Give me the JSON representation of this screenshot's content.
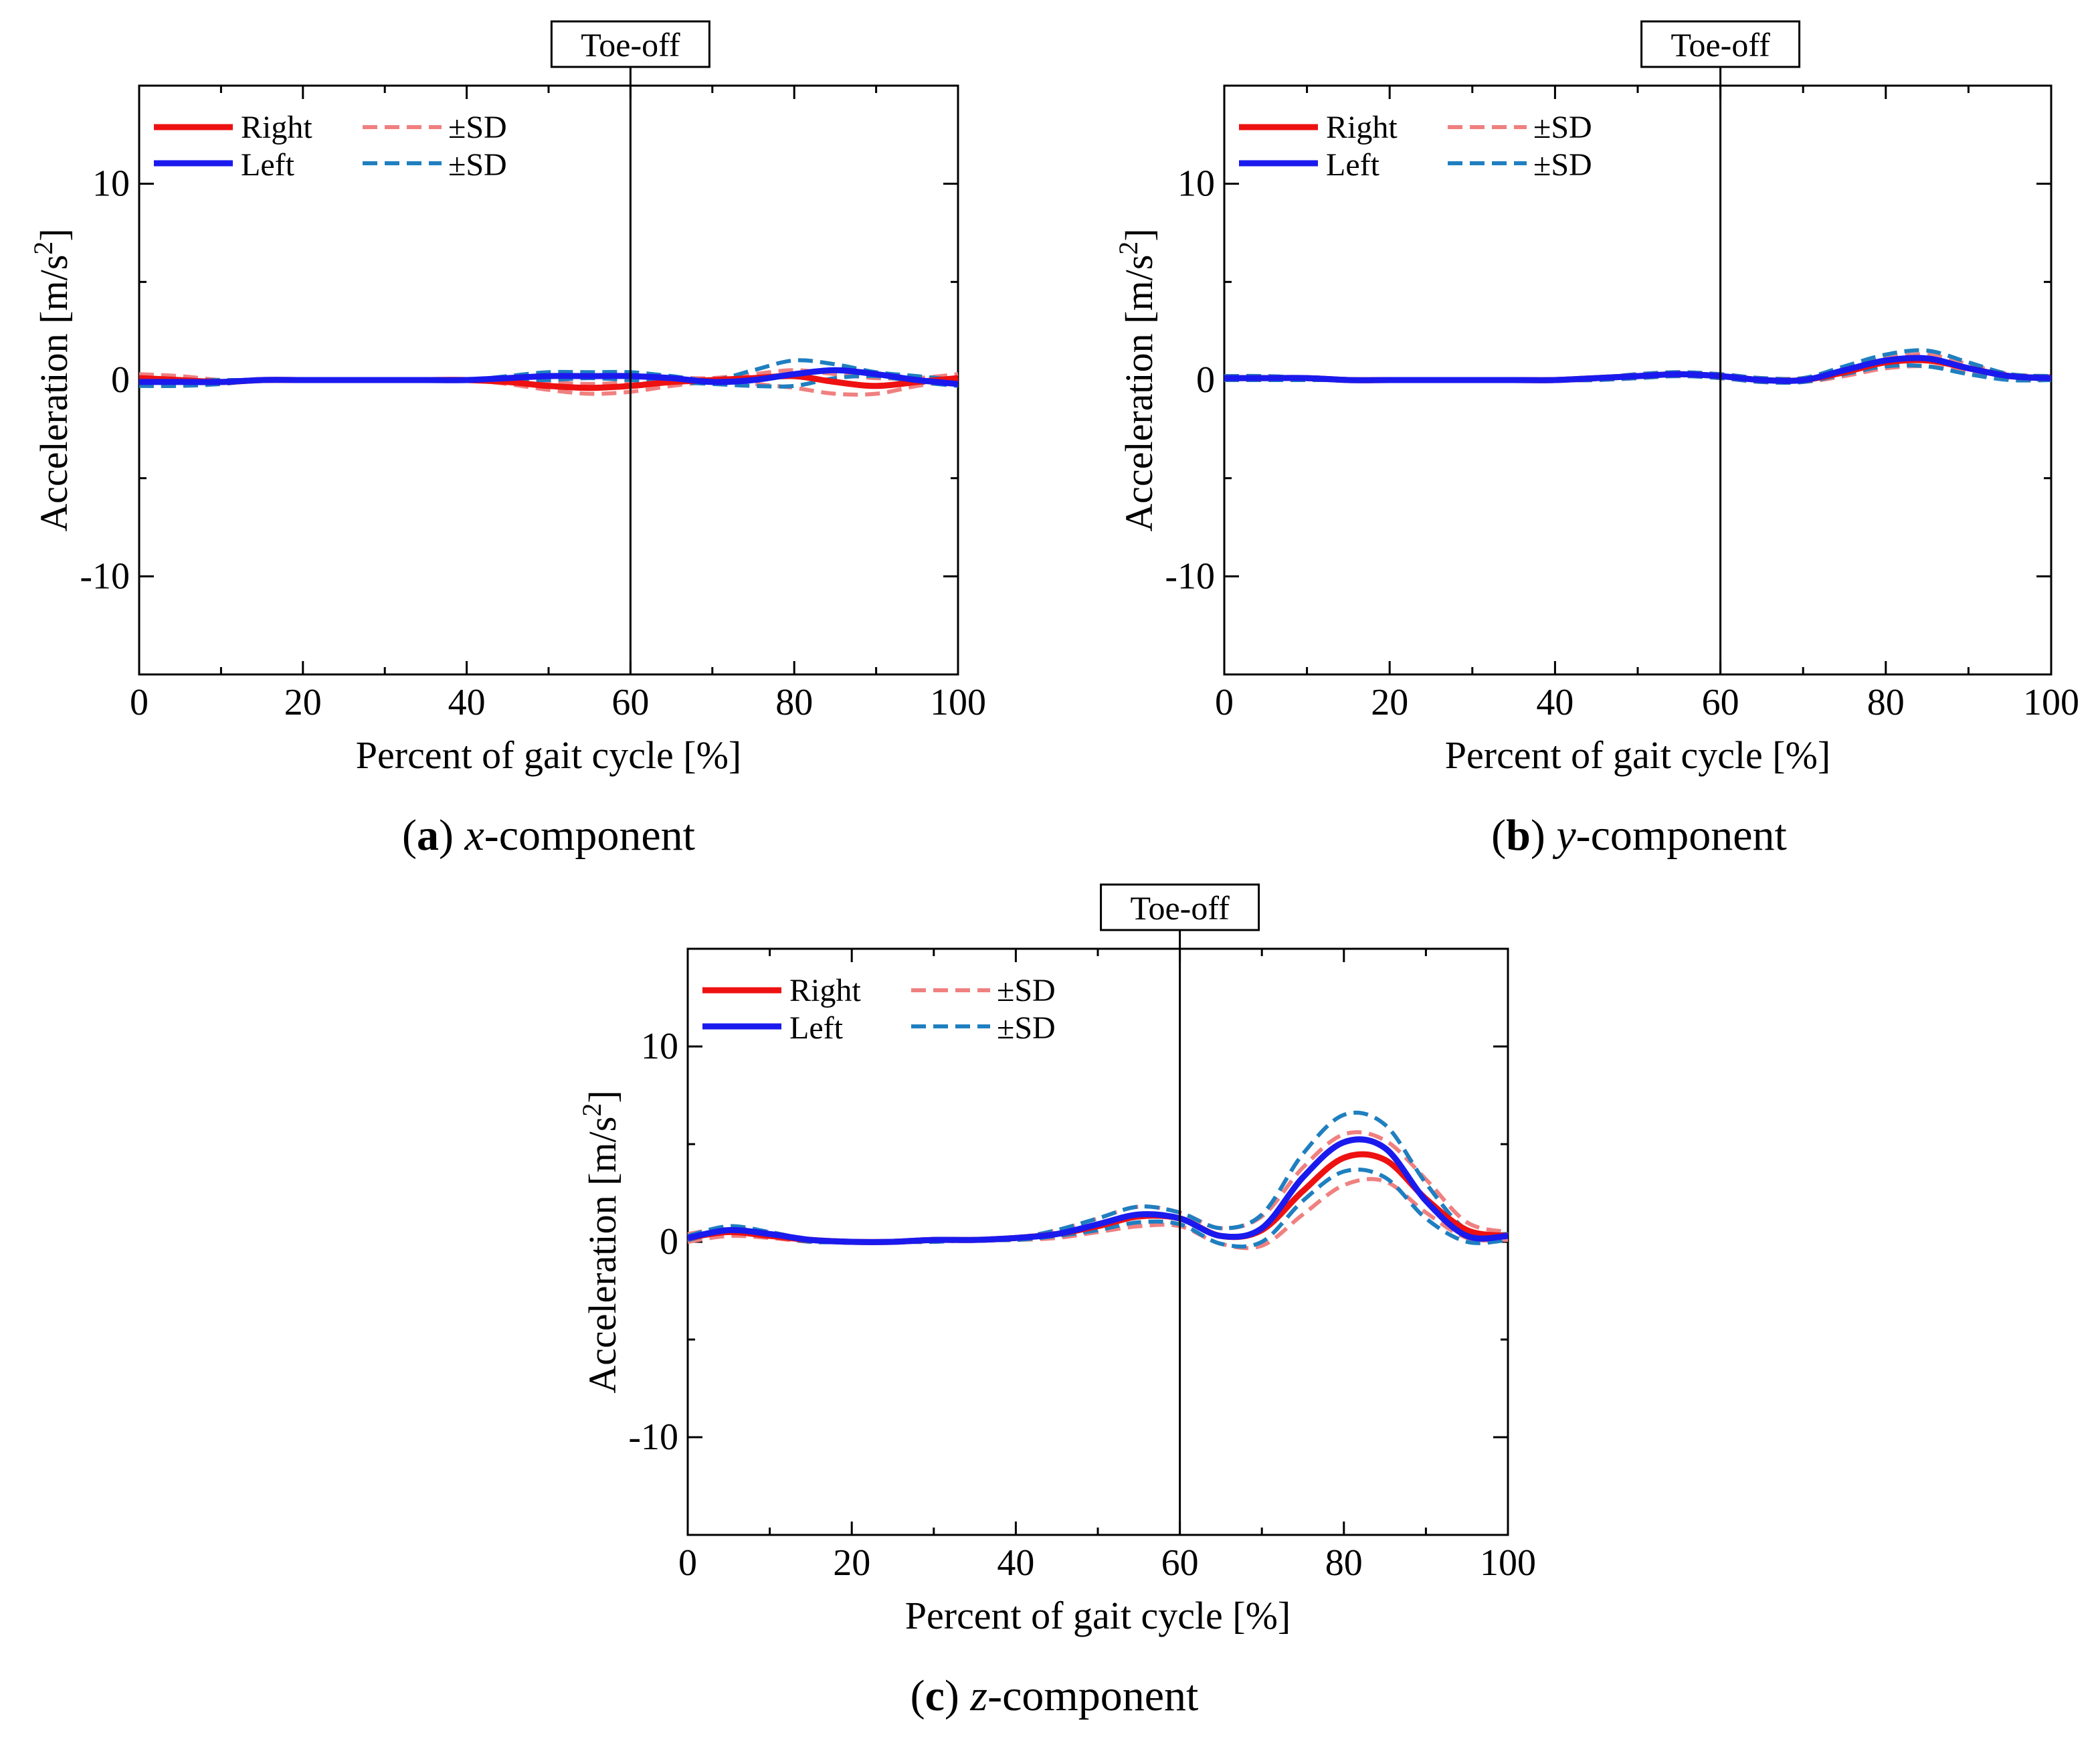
{
  "chart_data": [
    {
      "type": "line",
      "panel_letter": "a",
      "caption_var": "x",
      "caption_rest": "-component",
      "xlabel": "Percent of gait cycle [%]",
      "ylabel": "Acceleration [m/s",
      "ylabel_sup": "2",
      "ylabel_end": "]",
      "xlim": [
        0,
        100
      ],
      "ylim": [
        -15,
        15
      ],
      "xticks": [
        0,
        20,
        40,
        60,
        80,
        100
      ],
      "yticks": [
        -10,
        0,
        10
      ],
      "ytick_labels": [
        "-10",
        "0",
        "10"
      ],
      "annotation": {
        "label": "Toe-off",
        "x": 60
      },
      "legend": {
        "position": "top-left",
        "entries": [
          "Right",
          "Left",
          "±SD",
          "±SD"
        ]
      },
      "x": [
        0,
        5,
        10,
        15,
        20,
        25,
        30,
        35,
        40,
        45,
        50,
        55,
        60,
        65,
        70,
        75,
        80,
        85,
        90,
        95,
        100
      ],
      "series": [
        {
          "name": "Right",
          "color": "#ee1111",
          "dash": false,
          "width": 9,
          "values": [
            0.1,
            0.0,
            -0.1,
            0.0,
            0.0,
            0.0,
            0.0,
            0.0,
            0.0,
            -0.1,
            -0.3,
            -0.4,
            -0.3,
            -0.1,
            0.0,
            0.1,
            0.2,
            -0.1,
            -0.3,
            -0.1,
            0.1
          ]
        },
        {
          "name": "Left",
          "color": "#1a1aee",
          "dash": false,
          "width": 9,
          "values": [
            -0.1,
            -0.1,
            -0.1,
            0.0,
            0.0,
            0.0,
            0.0,
            0.0,
            0.0,
            0.1,
            0.2,
            0.2,
            0.2,
            0.1,
            -0.1,
            0.0,
            0.3,
            0.5,
            0.3,
            0.0,
            -0.2
          ]
        },
        {
          "name": "Right +SD",
          "color": "#f08080",
          "dash": true,
          "width": 6,
          "values": [
            0.3,
            0.2,
            0.0,
            0.0,
            0.0,
            0.0,
            0.0,
            0.0,
            0.0,
            0.0,
            -0.1,
            -0.2,
            -0.1,
            0.1,
            0.1,
            0.3,
            0.5,
            0.3,
            0.1,
            0.1,
            0.3
          ]
        },
        {
          "name": "Right -SD",
          "color": "#f08080",
          "dash": true,
          "width": 6,
          "values": [
            -0.1,
            -0.2,
            -0.2,
            0.0,
            0.0,
            0.0,
            0.0,
            0.0,
            0.0,
            -0.2,
            -0.5,
            -0.7,
            -0.6,
            -0.3,
            -0.1,
            -0.2,
            -0.4,
            -0.7,
            -0.7,
            -0.3,
            0.0
          ]
        },
        {
          "name": "Left +SD",
          "color": "#1f7fc0",
          "dash": true,
          "width": 6,
          "values": [
            0.1,
            0.0,
            0.0,
            0.0,
            0.0,
            0.0,
            0.0,
            0.0,
            0.0,
            0.2,
            0.4,
            0.4,
            0.4,
            0.2,
            0.0,
            0.5,
            1.0,
            0.8,
            0.4,
            0.2,
            0.0
          ]
        },
        {
          "name": "Left -SD",
          "color": "#1f7fc0",
          "dash": true,
          "width": 6,
          "values": [
            -0.3,
            -0.3,
            -0.2,
            0.0,
            0.0,
            0.0,
            0.0,
            0.0,
            0.0,
            0.0,
            0.0,
            0.1,
            0.0,
            -0.1,
            -0.2,
            -0.3,
            -0.3,
            0.1,
            0.2,
            -0.1,
            -0.3
          ]
        }
      ]
    },
    {
      "type": "line",
      "panel_letter": "b",
      "caption_var": "y",
      "caption_rest": "-component",
      "xlabel": "Percent of gait cycle [%]",
      "ylabel": "Acceleration [m/s",
      "ylabel_sup": "2",
      "ylabel_end": "]",
      "xlim": [
        0,
        100
      ],
      "ylim": [
        -15,
        15
      ],
      "xticks": [
        0,
        20,
        40,
        60,
        80,
        100
      ],
      "yticks": [
        -10,
        0,
        10
      ],
      "ytick_labels": [
        "-10",
        "0",
        "10"
      ],
      "annotation": {
        "label": "Toe-off",
        "x": 60
      },
      "legend": {
        "position": "top-left",
        "entries": [
          "Right",
          "Left",
          "±SD",
          "±SD"
        ]
      },
      "x": [
        0,
        5,
        10,
        15,
        20,
        25,
        30,
        35,
        40,
        45,
        50,
        55,
        60,
        65,
        70,
        75,
        80,
        85,
        90,
        95,
        100
      ],
      "series": [
        {
          "name": "Right",
          "color": "#ee1111",
          "dash": false,
          "width": 9,
          "values": [
            0.1,
            0.1,
            0.1,
            0.0,
            0.0,
            0.0,
            0.0,
            0.0,
            0.0,
            0.1,
            0.2,
            0.3,
            0.2,
            0.0,
            0.0,
            0.4,
            0.9,
            1.0,
            0.6,
            0.2,
            0.1
          ]
        },
        {
          "name": "Left",
          "color": "#1a1aee",
          "dash": false,
          "width": 9,
          "values": [
            0.1,
            0.1,
            0.1,
            0.0,
            0.0,
            0.0,
            0.0,
            0.0,
            0.0,
            0.1,
            0.2,
            0.3,
            0.2,
            0.0,
            0.0,
            0.5,
            1.0,
            1.1,
            0.6,
            0.2,
            0.1
          ]
        },
        {
          "name": "Right +SD",
          "color": "#f08080",
          "dash": true,
          "width": 6,
          "values": [
            0.2,
            0.2,
            0.1,
            0.0,
            0.0,
            0.0,
            0.0,
            0.0,
            0.0,
            0.1,
            0.3,
            0.4,
            0.3,
            0.1,
            0.1,
            0.6,
            1.1,
            1.3,
            0.8,
            0.3,
            0.2
          ]
        },
        {
          "name": "Right -SD",
          "color": "#f08080",
          "dash": true,
          "width": 6,
          "values": [
            0.0,
            0.0,
            0.0,
            0.0,
            0.0,
            0.0,
            0.0,
            0.0,
            0.0,
            0.0,
            0.1,
            0.2,
            0.1,
            -0.1,
            -0.1,
            0.2,
            0.6,
            0.7,
            0.4,
            0.1,
            0.0
          ]
        },
        {
          "name": "Left +SD",
          "color": "#1f7fc0",
          "dash": true,
          "width": 6,
          "values": [
            0.2,
            0.2,
            0.1,
            0.0,
            0.0,
            0.0,
            0.0,
            0.0,
            0.0,
            0.1,
            0.3,
            0.4,
            0.3,
            0.1,
            0.1,
            0.7,
            1.3,
            1.5,
            0.9,
            0.3,
            0.2
          ]
        },
        {
          "name": "Left -SD",
          "color": "#1f7fc0",
          "dash": true,
          "width": 6,
          "values": [
            0.0,
            0.0,
            0.0,
            0.0,
            0.0,
            0.0,
            0.0,
            0.0,
            0.0,
            0.0,
            0.1,
            0.2,
            0.1,
            -0.1,
            -0.1,
            0.3,
            0.7,
            0.7,
            0.3,
            0.0,
            0.0
          ]
        }
      ]
    },
    {
      "type": "line",
      "panel_letter": "c",
      "caption_var": "z",
      "caption_rest": "-component",
      "xlabel": "Percent of gait cycle [%]",
      "ylabel": "Acceleration [m/s",
      "ylabel_sup": "2",
      "ylabel_end": "]",
      "xlim": [
        0,
        100
      ],
      "ylim": [
        -15,
        15
      ],
      "xticks": [
        0,
        20,
        40,
        60,
        80,
        100
      ],
      "yticks": [
        -10,
        0,
        10
      ],
      "ytick_labels": [
        "-10",
        "0",
        "10"
      ],
      "annotation": {
        "label": "Toe-off",
        "x": 60
      },
      "legend": {
        "position": "top-left",
        "entries": [
          "Right",
          "Left",
          "±SD",
          "±SD"
        ]
      },
      "x": [
        0,
        5,
        10,
        15,
        20,
        25,
        30,
        35,
        40,
        45,
        50,
        55,
        60,
        65,
        70,
        75,
        80,
        85,
        90,
        95,
        100
      ],
      "series": [
        {
          "name": "Right",
          "color": "#ee1111",
          "dash": false,
          "width": 9,
          "values": [
            0.2,
            0.5,
            0.3,
            0.1,
            0.0,
            0.0,
            0.1,
            0.1,
            0.2,
            0.4,
            0.8,
            1.3,
            1.2,
            0.3,
            0.6,
            2.6,
            4.3,
            4.2,
            2.2,
            0.6,
            0.3
          ]
        },
        {
          "name": "Left",
          "color": "#1a1aee",
          "dash": false,
          "width": 9,
          "values": [
            0.2,
            0.6,
            0.4,
            0.1,
            0.0,
            0.0,
            0.1,
            0.1,
            0.2,
            0.4,
            0.9,
            1.4,
            1.2,
            0.3,
            0.7,
            3.3,
            5.1,
            4.8,
            2.1,
            0.3,
            0.3
          ]
        },
        {
          "name": "Right +SD",
          "color": "#f08080",
          "dash": true,
          "width": 6,
          "values": [
            0.4,
            0.7,
            0.5,
            0.1,
            0.0,
            0.0,
            0.1,
            0.1,
            0.2,
            0.6,
            1.2,
            1.8,
            1.5,
            0.7,
            1.3,
            3.8,
            5.5,
            5.2,
            3.2,
            1.0,
            0.5
          ]
        },
        {
          "name": "Right -SD",
          "color": "#f08080",
          "dash": true,
          "width": 6,
          "values": [
            0.0,
            0.3,
            0.2,
            0.0,
            0.0,
            0.0,
            0.0,
            0.1,
            0.1,
            0.2,
            0.5,
            0.8,
            0.8,
            -0.1,
            -0.2,
            1.4,
            2.9,
            3.1,
            1.5,
            0.2,
            0.1
          ]
        },
        {
          "name": "Left +SD",
          "color": "#1f7fc0",
          "dash": true,
          "width": 6,
          "values": [
            0.3,
            0.8,
            0.5,
            0.1,
            0.0,
            0.0,
            0.1,
            0.1,
            0.2,
            0.6,
            1.2,
            1.8,
            1.5,
            0.7,
            1.4,
            4.5,
            6.5,
            6.0,
            3.0,
            0.6,
            0.4
          ]
        },
        {
          "name": "Left -SD",
          "color": "#1f7fc0",
          "dash": true,
          "width": 6,
          "values": [
            0.1,
            0.5,
            0.3,
            0.0,
            0.0,
            0.0,
            0.0,
            0.1,
            0.1,
            0.3,
            0.6,
            1.0,
            0.9,
            -0.1,
            0.0,
            2.1,
            3.6,
            3.3,
            1.2,
            0.0,
            0.1
          ]
        }
      ]
    }
  ]
}
